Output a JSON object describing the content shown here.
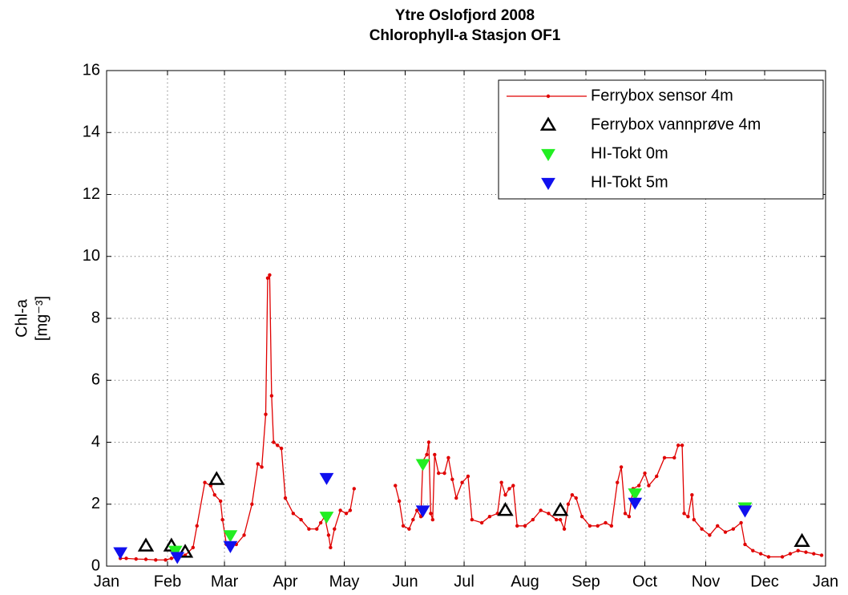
{
  "chart_data": {
    "type": "line",
    "title": [
      "Ytre Oslofjord 2008",
      "Chlorophyll-a Stasjon  OF1"
    ],
    "ylabel": [
      "Chl-a",
      "[mg⁻³]"
    ],
    "xlim": [
      0,
      366
    ],
    "xticks": [
      {
        "value": 0,
        "label": "Jan"
      },
      {
        "value": 31,
        "label": "Feb"
      },
      {
        "value": 60,
        "label": "Mar"
      },
      {
        "value": 91,
        "label": "Apr"
      },
      {
        "value": 121,
        "label": "May"
      },
      {
        "value": 152,
        "label": "Jun"
      },
      {
        "value": 182,
        "label": "Jul"
      },
      {
        "value": 213,
        "label": "Aug"
      },
      {
        "value": 244,
        "label": "Sep"
      },
      {
        "value": 274,
        "label": "Oct"
      },
      {
        "value": 305,
        "label": "Nov"
      },
      {
        "value": 335,
        "label": "Dec"
      },
      {
        "value": 366,
        "label": "Jan"
      }
    ],
    "ylim": [
      0,
      16
    ],
    "yticks": [
      0,
      2,
      4,
      6,
      8,
      10,
      12,
      14,
      16
    ],
    "grid": true,
    "legend": "upper right",
    "series": [
      {
        "name": "Ferrybox sensor 4m",
        "color": "#e00000",
        "marker": "dot",
        "x": [
          7,
          10,
          15,
          20,
          25,
          30,
          33,
          36,
          40,
          44,
          46,
          50,
          53,
          55,
          58,
          59,
          61,
          66,
          70,
          74,
          77,
          79,
          81,
          82,
          83,
          84,
          85,
          87,
          89,
          91,
          95,
          99,
          103,
          107,
          109,
          111,
          113,
          114,
          116,
          119,
          122,
          124,
          126,
          130,
          147,
          149,
          151,
          154,
          156,
          158,
          160,
          161,
          163,
          164,
          165,
          166,
          167,
          169,
          172,
          174,
          176,
          178,
          181,
          184,
          186,
          191,
          195,
          199,
          201,
          203,
          205,
          207,
          209,
          213,
          217,
          221,
          225,
          229,
          231,
          233,
          235,
          237,
          239,
          242,
          246,
          250,
          254,
          257,
          260,
          262,
          264,
          266,
          268,
          271,
          274,
          276,
          280,
          284,
          289,
          291,
          293,
          294,
          296,
          298,
          299,
          303,
          307,
          311,
          315,
          319,
          323,
          325,
          329,
          333,
          337,
          344,
          348,
          352,
          356,
          360,
          364
        ],
        "values": [
          0.25,
          0.25,
          0.23,
          0.22,
          0.2,
          0.2,
          0.25,
          0.3,
          0.35,
          0.6,
          1.3,
          2.7,
          2.6,
          2.3,
          2.1,
          1.5,
          0.7,
          0.7,
          1.0,
          2.0,
          3.3,
          3.2,
          4.9,
          9.3,
          9.4,
          5.5,
          4.0,
          3.9,
          3.8,
          2.2,
          1.7,
          1.5,
          1.2,
          1.2,
          1.4,
          1.6,
          1.0,
          0.6,
          1.2,
          1.8,
          1.7,
          1.8,
          2.5,
          null,
          2.6,
          2.1,
          1.3,
          1.2,
          1.5,
          1.8,
          1.6,
          3.4,
          3.6,
          4.0,
          1.7,
          1.5,
          3.6,
          3.0,
          3.0,
          3.5,
          2.8,
          2.2,
          2.7,
          2.9,
          1.5,
          1.4,
          1.6,
          1.7,
          2.7,
          2.3,
          2.5,
          2.6,
          1.3,
          1.3,
          1.5,
          1.8,
          1.7,
          1.5,
          1.5,
          1.2,
          2.0,
          2.3,
          2.2,
          1.6,
          1.3,
          1.3,
          1.4,
          1.3,
          2.7,
          3.2,
          1.7,
          1.6,
          2.5,
          2.6,
          3.0,
          2.6,
          2.9,
          3.5,
          3.5,
          3.9,
          3.9,
          1.7,
          1.6,
          2.3,
          1.5,
          1.2,
          1.0,
          1.3,
          1.1,
          1.2,
          1.4,
          0.7,
          0.5,
          0.4,
          0.3,
          0.3,
          0.4,
          0.5,
          0.45,
          0.4,
          0.35
        ]
      },
      {
        "name": "Ferrybox vannprøve 4m",
        "color": "#000000",
        "marker": "triangle-up",
        "x": [
          20,
          33,
          40,
          56,
          203,
          231,
          354
        ],
        "values": [
          0.65,
          0.65,
          0.45,
          2.8,
          1.8,
          1.8,
          0.8
        ]
      },
      {
        "name": "HI-Tokt 0m",
        "color": "#22ee22",
        "marker": "triangle-down",
        "x": [
          35,
          63,
          112,
          161,
          269,
          325
        ],
        "values": [
          0.5,
          1.0,
          1.6,
          3.3,
          2.35,
          1.9
        ]
      },
      {
        "name": "HI-Tokt 5m",
        "color": "#1010ee",
        "marker": "triangle-down",
        "x": [
          7,
          36,
          63,
          112,
          161,
          269,
          325
        ],
        "values": [
          0.45,
          0.3,
          0.65,
          2.85,
          1.8,
          2.05,
          1.8
        ]
      }
    ]
  }
}
